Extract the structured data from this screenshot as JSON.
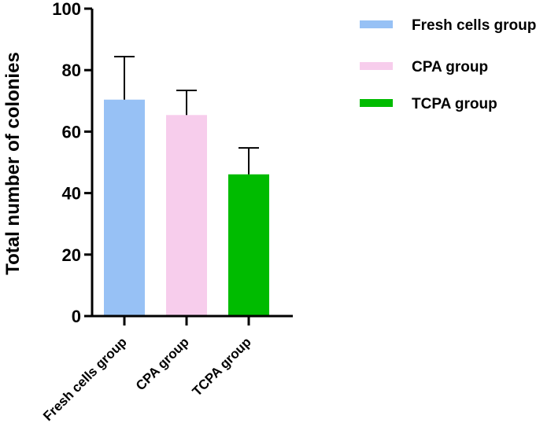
{
  "chart_data": {
    "type": "bar",
    "categories": [
      "Fresh cells group",
      "CPA group",
      "TCPA group"
    ],
    "values": [
      70.4,
      65.4,
      46.1
    ],
    "error": [
      14.0,
      8.0,
      8.6
    ],
    "colors": [
      "#97c1f5",
      "#f7cdec",
      "#00bb00"
    ],
    "xlabel": "",
    "ylabel": "Total number of  colonies",
    "ylim": [
      0,
      100
    ],
    "yticks": [
      0,
      20,
      40,
      60,
      80,
      100
    ],
    "legend": {
      "position": "top-right",
      "entries": [
        "Fresh cells group",
        "CPA group",
        "TCPA group"
      ]
    },
    "grid": false
  }
}
